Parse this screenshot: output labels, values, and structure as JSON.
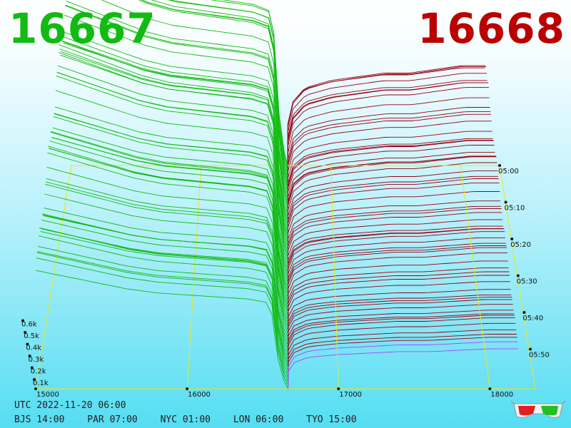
{
  "prices": {
    "left": "16667",
    "right": "16668"
  },
  "time": {
    "utc": "UTC 2022-11-20 06:00",
    "zones": [
      "BJS 14:00",
      "PAR 07:00",
      "NYC 01:00",
      "LON 06:00",
      "TYO 15:00"
    ]
  },
  "icons": {
    "glasses": "3d-glasses-icon"
  },
  "colors": {
    "bid": "#11bb11",
    "ask": "#990011",
    "frame": "#e8e81a",
    "mid": "#aa44ff"
  },
  "chart_data": {
    "type": "3d-depth",
    "title": "",
    "price_ticks": [
      "15000",
      "16000",
      "17000",
      "18000"
    ],
    "depth_ticks": [
      "0.1k",
      "0.2k",
      "0.3k",
      "0.4k",
      "0.5k",
      "0.6k"
    ],
    "time_ticks": [
      "05:00",
      "05:10",
      "05:20",
      "05:30",
      "05:40",
      "05:50"
    ],
    "price_range": [
      15000,
      18300
    ],
    "depth_range": [
      0,
      0.6
    ],
    "bid_price": 16667,
    "ask_price": 16668,
    "snapshots": 62,
    "bid_profile": {
      "price": [
        15000,
        15200,
        15400,
        15600,
        15800,
        16000,
        16200,
        16400,
        16550,
        16620
      ],
      "depth": [
        0.58,
        0.55,
        0.52,
        0.49,
        0.47,
        0.46,
        0.45,
        0.44,
        0.42,
        0.04
      ]
    },
    "ask_profile": {
      "price": [
        16670,
        16700,
        16800,
        17000,
        17200,
        17400,
        17600,
        17800,
        18000,
        18200
      ],
      "depth": [
        0.12,
        0.18,
        0.22,
        0.24,
        0.25,
        0.26,
        0.26,
        0.27,
        0.28,
        0.28
      ]
    }
  }
}
